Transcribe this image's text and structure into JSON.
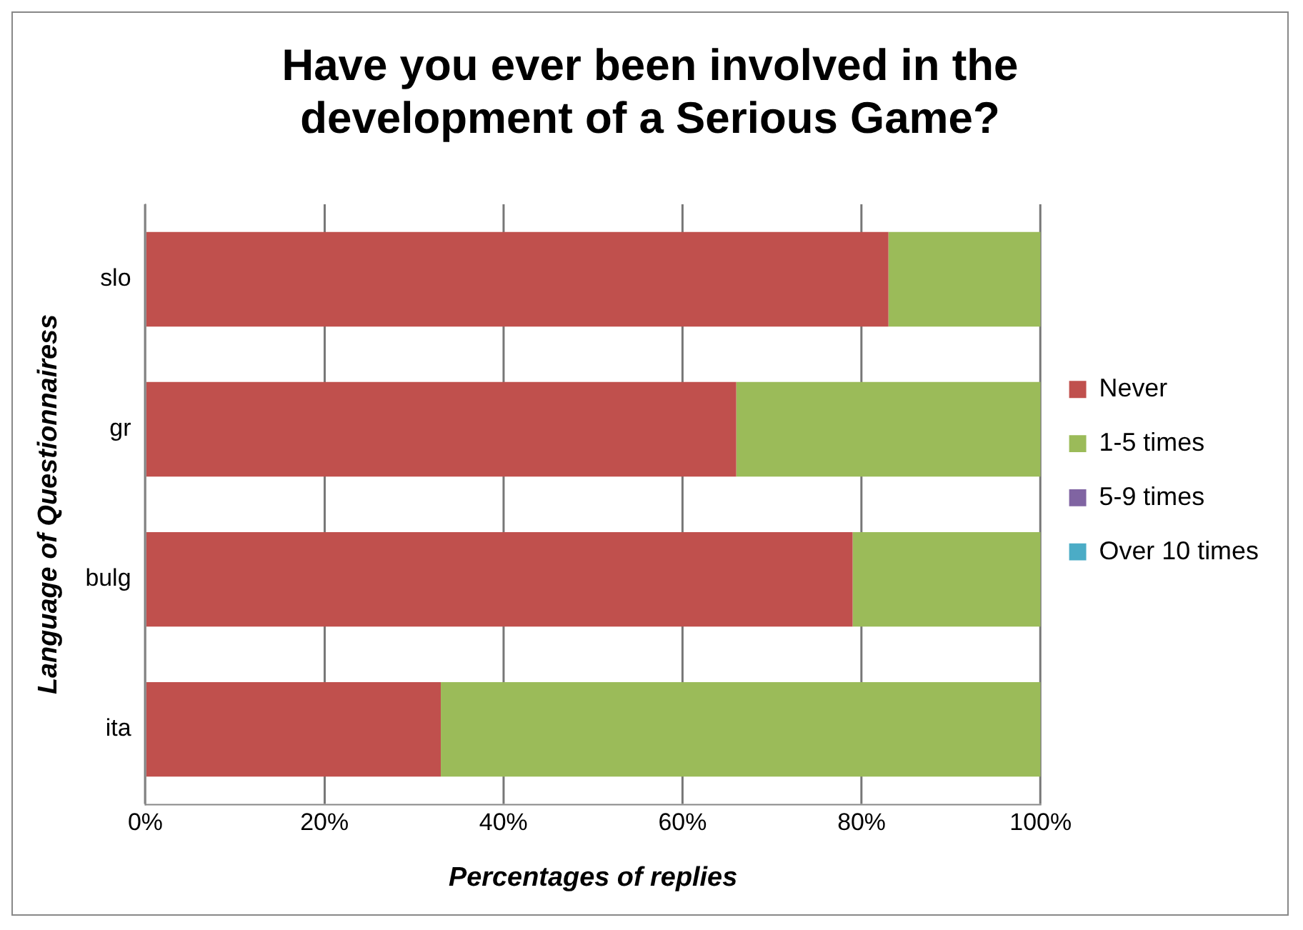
{
  "chart_data": {
    "type": "bar",
    "orientation": "horizontal",
    "stacked": true,
    "title": "Have you ever been involved in the development of a Serious Game?",
    "xlabel": "Percentages of replies",
    "ylabel": "Language of Questionnairess",
    "categories": [
      "slo",
      "gr",
      "bulg",
      "ita"
    ],
    "series": [
      {
        "name": "Never",
        "color": "#c0504d",
        "values": [
          83,
          66,
          79,
          33
        ]
      },
      {
        "name": "1-5 times",
        "color": "#9bbb59",
        "values": [
          17,
          34,
          21,
          67
        ]
      },
      {
        "name": "5-9 times",
        "color": "#8064a2",
        "values": [
          0,
          0,
          0,
          0
        ]
      },
      {
        "name": "Over 10 times",
        "color": "#4bacc6",
        "values": [
          0,
          0,
          0,
          0
        ]
      }
    ],
    "xlim": [
      0,
      100
    ],
    "xticks": [
      {
        "value": 0,
        "label": "0%"
      },
      {
        "value": 20,
        "label": "20%"
      },
      {
        "value": 40,
        "label": "40%"
      },
      {
        "value": 60,
        "label": "60%"
      },
      {
        "value": 80,
        "label": "80%"
      },
      {
        "value": 100,
        "label": "100%"
      }
    ],
    "grid": "x",
    "legend": "right"
  }
}
